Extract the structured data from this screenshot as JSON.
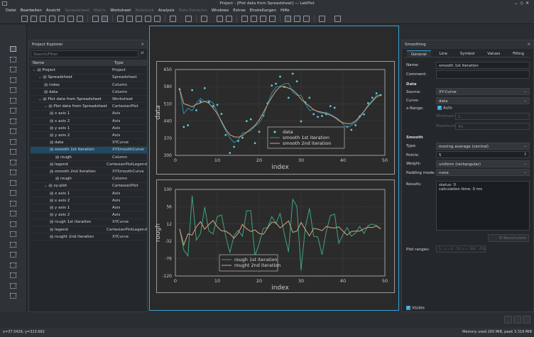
{
  "window": {
    "title": "Project - [Plot data from Spreadsheet] — LabPlot"
  },
  "menu": [
    {
      "label": "Datei",
      "enabled": true
    },
    {
      "label": "Bearbeiten",
      "enabled": true
    },
    {
      "label": "Ansicht",
      "enabled": true
    },
    {
      "label": "Spreadsheet",
      "enabled": false
    },
    {
      "label": "Matrix",
      "enabled": false
    },
    {
      "label": "Worksheet",
      "enabled": true
    },
    {
      "label": "Notebook",
      "enabled": false
    },
    {
      "label": "Analysis",
      "enabled": true
    },
    {
      "label": "Data Extractor",
      "enabled": false
    },
    {
      "label": "Windows",
      "enabled": true
    },
    {
      "label": "Extras",
      "enabled": true
    },
    {
      "label": "Einstellungen",
      "enabled": true
    },
    {
      "label": "Hilfe",
      "enabled": true
    }
  ],
  "explorer": {
    "title": "Project Explorer",
    "search_placeholder": "Search/Filter",
    "columns": [
      "Name",
      "Type"
    ],
    "rows": [
      {
        "name": "Project",
        "type": "Project",
        "level": 0,
        "icon": "project-icon"
      },
      {
        "name": "Spreadsheet",
        "type": "Spreadsheet",
        "level": 1,
        "icon": "spreadsheet-icon"
      },
      {
        "name": "index",
        "type": "Column",
        "level": 2,
        "icon": "column-icon"
      },
      {
        "name": "data",
        "type": "Column",
        "level": 2,
        "icon": "column-icon"
      },
      {
        "name": "Plot data from Spreadsheet",
        "type": "Worksheet",
        "level": 1,
        "icon": "worksheet-icon"
      },
      {
        "name": "Plot data from Spreadsheet",
        "type": "CartesianPlot",
        "level": 2,
        "icon": "plot-icon"
      },
      {
        "name": "x axis 1",
        "type": "Axis",
        "level": 3,
        "icon": "axis-icon"
      },
      {
        "name": "x axis 2",
        "type": "Axis",
        "level": 3,
        "icon": "axis-icon"
      },
      {
        "name": "y axis 1",
        "type": "Axis",
        "level": 3,
        "icon": "axis-icon"
      },
      {
        "name": "y axis 2",
        "type": "Axis",
        "level": 3,
        "icon": "axis-icon"
      },
      {
        "name": "data",
        "type": "XYCurve",
        "level": 3,
        "icon": "curve-icon"
      },
      {
        "name": "smooth 1st iteration",
        "type": "XYSmoothCurve",
        "level": 3,
        "icon": "smooth-curve-icon",
        "selected": true
      },
      {
        "name": "rough",
        "type": "Column",
        "level": 4,
        "icon": "column-icon"
      },
      {
        "name": "legend",
        "type": "CartesianPlotLegend",
        "level": 3,
        "icon": "legend-icon"
      },
      {
        "name": "smooth 2nd iteration",
        "type": "XYSmoothCurve",
        "level": 3,
        "icon": "smooth-curve-icon"
      },
      {
        "name": "rough",
        "type": "Column",
        "level": 4,
        "icon": "column-icon"
      },
      {
        "name": "xy-plot",
        "type": "CartesianPlot",
        "level": 2,
        "icon": "plot-icon"
      },
      {
        "name": "x axis 1",
        "type": "Axis",
        "level": 3,
        "icon": "axis-icon"
      },
      {
        "name": "x axis 2",
        "type": "Axis",
        "level": 3,
        "icon": "axis-icon"
      },
      {
        "name": "y axis 1",
        "type": "Axis",
        "level": 3,
        "icon": "axis-icon"
      },
      {
        "name": "y axis 2",
        "type": "Axis",
        "level": 3,
        "icon": "axis-icon"
      },
      {
        "name": "rough 1st iteration",
        "type": "XYCurve",
        "level": 3,
        "icon": "curve-icon"
      },
      {
        "name": "legend",
        "type": "CartesianPlotLegend",
        "level": 3,
        "icon": "legend-icon"
      },
      {
        "name": "rought 2nd iteration",
        "type": "XYCurve",
        "level": 3,
        "icon": "curve-icon"
      }
    ]
  },
  "colors": {
    "data": "#5cc8d2",
    "smooth1": "#2a93ad",
    "smooth2": "#d8a582",
    "rough1": "#3ea57e",
    "rough2": "#d8a582",
    "accent": "#3a9fd5"
  },
  "chart_data": [
    {
      "type": "line",
      "xlabel": "index",
      "ylabel": "data",
      "xlim": [
        0,
        50
      ],
      "ylim": [
        300,
        650
      ],
      "xticks": [
        0,
        10,
        20,
        30,
        40,
        50
      ],
      "yticks": [
        300,
        370,
        440,
        510,
        580,
        650
      ],
      "grid": true,
      "legend": "bottom-center",
      "x": [
        1,
        2,
        3,
        4,
        5,
        6,
        7,
        8,
        9,
        10,
        11,
        12,
        13,
        14,
        15,
        16,
        17,
        18,
        19,
        20,
        21,
        22,
        23,
        24,
        25,
        26,
        27,
        28,
        29,
        30,
        31,
        32,
        33,
        34,
        35,
        36,
        37,
        38,
        39,
        40,
        41,
        42,
        43,
        44,
        45,
        46,
        47,
        48,
        49
      ],
      "series": [
        {
          "name": "data",
          "style": "scatter",
          "values": [
            570,
            416,
            423,
            566,
            484,
            520,
            574,
            518,
            501,
            506,
            469,
            383,
            310,
            335,
            359,
            372,
            440,
            447,
            350,
            396,
            462,
            512,
            585,
            592,
            621,
            579,
            535,
            633,
            602,
            439,
            516,
            535,
            468,
            457,
            461,
            468,
            501,
            494,
            410,
            412,
            416,
            404,
            423,
            459,
            467,
            513,
            535,
            553,
            546
          ]
        },
        {
          "name": "smooth 1st iteration",
          "style": "line",
          "values": [
            570,
            470,
            492,
            482,
            513,
            532,
            519,
            524,
            514,
            475,
            434,
            401,
            371,
            352,
            363,
            391,
            394,
            401,
            419,
            433,
            461,
            509,
            554,
            578,
            582,
            592,
            594,
            558,
            545,
            545,
            512,
            483,
            487,
            478,
            471,
            476,
            467,
            457,
            447,
            427,
            413,
            423,
            434,
            453,
            479,
            505,
            523,
            545,
            546
          ]
        },
        {
          "name": "smooth 2nd iteration",
          "style": "line",
          "values": [
            570,
            511,
            505,
            498,
            508,
            514,
            520,
            513,
            493,
            470,
            439,
            407,
            384,
            376,
            374,
            380,
            394,
            408,
            422,
            445,
            475,
            507,
            537,
            563,
            580,
            581,
            574,
            567,
            551,
            529,
            514,
            501,
            486,
            479,
            476,
            470,
            464,
            455,
            442,
            433,
            429,
            430,
            440,
            459,
            479,
            501,
            520,
            538,
            546
          ]
        }
      ]
    },
    {
      "type": "line",
      "xlabel": "index",
      "ylabel": "rough",
      "xlim": [
        0,
        50
      ],
      "ylim": [
        -120,
        100
      ],
      "xticks": [
        0,
        10,
        20,
        30,
        40,
        50
      ],
      "yticks": [
        -120,
        -76,
        -32,
        12,
        56,
        100
      ],
      "grid": true,
      "legend": "bottom-left",
      "x": [
        1,
        2,
        3,
        4,
        5,
        6,
        7,
        8,
        9,
        10,
        11,
        12,
        13,
        14,
        15,
        16,
        17,
        18,
        19,
        20,
        21,
        22,
        23,
        24,
        25,
        26,
        27,
        28,
        29,
        30,
        31,
        32,
        33,
        34,
        35,
        36,
        37,
        38,
        39,
        40,
        41,
        42,
        43,
        44,
        45,
        46,
        47,
        48,
        49
      ],
      "series": [
        {
          "name": "rough 1st iteration",
          "style": "line",
          "values": [
            0,
            -54,
            -69,
            84,
            -29,
            -12,
            55,
            -6,
            -13,
            31,
            35,
            -18,
            -61,
            -17,
            -4,
            -19,
            46,
            46,
            -69,
            -37,
            1,
            3,
            31,
            14,
            39,
            -13,
            -59,
            75,
            57,
            -106,
            4,
            52,
            -19,
            -21,
            -66,
            -8,
            34,
            37,
            -37,
            -15,
            3,
            -19,
            -11,
            6,
            -12,
            8,
            12,
            8,
            0
          ]
        },
        {
          "name": "rought 2nd iteration",
          "style": "line",
          "values": [
            0,
            -41,
            -13,
            -16,
            5,
            18,
            -1,
            11,
            21,
            5,
            -5,
            -6,
            -13,
            -24,
            -11,
            11,
            0,
            -7,
            -3,
            -12,
            -14,
            2,
            17,
            15,
            2,
            11,
            20,
            -9,
            -6,
            16,
            -2,
            -18,
            1,
            -1,
            -5,
            6,
            3,
            2,
            5,
            -6,
            -16,
            -7,
            -6,
            -6,
            0,
            4,
            3,
            7,
            0
          ]
        }
      ]
    }
  ],
  "props": {
    "title": "Smoothing",
    "tabs": [
      "General",
      "Line",
      "Symbol",
      "Values",
      "Filling"
    ],
    "name_label": "Name:",
    "name_value": "smooth 1st iteration",
    "comment_label": "Comment:",
    "comment_value": "",
    "data_section": "Data",
    "source_label": "Source:",
    "source_value": "XY-Curve",
    "curve_label": "Curve:",
    "curve_value": "data",
    "xrange_label": "x-Range:",
    "auto_label": "Auto",
    "auto_checked": true,
    "min_label": "Minimum:",
    "min_value": "1",
    "max_label": "Maximum:",
    "max_value": "49",
    "smooth_section": "Smooth",
    "type_label": "Type:",
    "type_value": "moving average (central)",
    "points_label": "Points:",
    "points_value": "5",
    "weight_label": "Weight:",
    "weight_value": "uniform (rectangular)",
    "padding_label": "Padding mode:",
    "padding_value": "none",
    "results_label": "Results:",
    "results_line1": "status: 0",
    "results_line2": "calculation time: 0 ms",
    "recalc_label": "Recalculate",
    "plot_ranges_label": "Plot ranges:",
    "plot_ranges_value": "1 : x = 0 .. 50, y = 300 .. 650",
    "visible_label": "Visible",
    "visible_checked": true
  },
  "status": {
    "coords": "x=37.5429, y=313.662",
    "memory": "Memory used 205 MiB, peak 3.319 MiB"
  }
}
